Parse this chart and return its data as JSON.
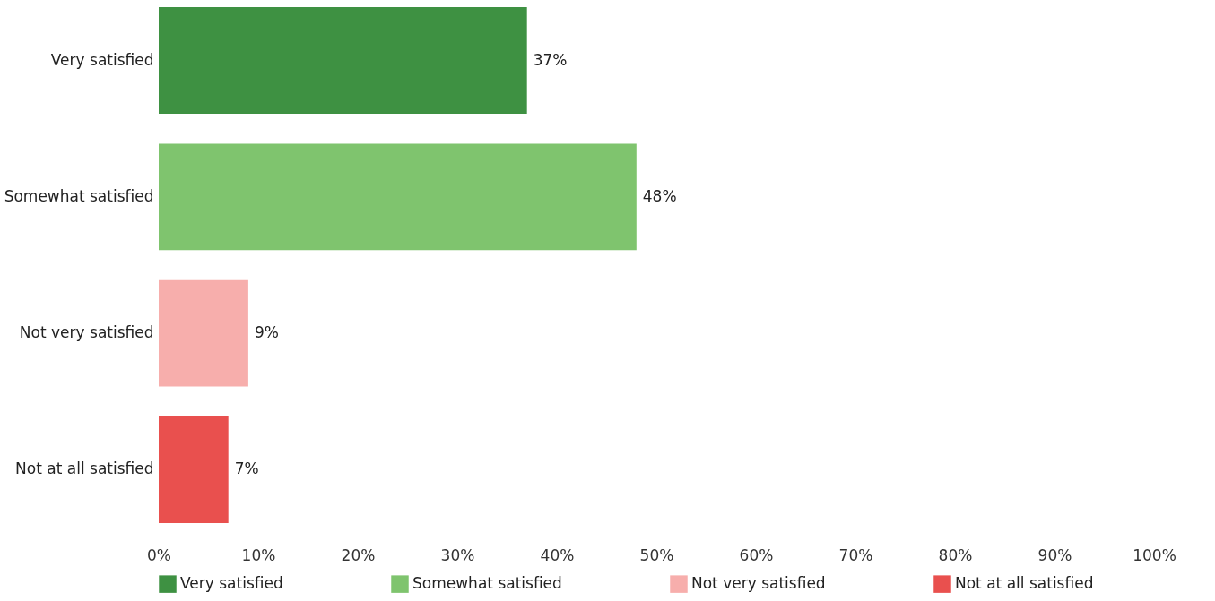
{
  "chart_data": {
    "type": "bar",
    "orientation": "horizontal",
    "stacked": true,
    "categories": [
      "Very satisfied",
      "Somewhat satisfied",
      "Not very satisfied",
      "Not at all satisfied"
    ],
    "series": [
      {
        "name": "Very satisfied",
        "color": "#3e9142",
        "values": [
          37,
          null,
          null,
          null
        ],
        "value_labels": [
          "37%",
          null,
          null,
          null
        ]
      },
      {
        "name": "Somewhat satisfied",
        "color": "#7fc46e",
        "values": [
          null,
          48,
          null,
          null
        ],
        "value_labels": [
          null,
          "48%",
          null,
          null
        ]
      },
      {
        "name": "Not very satisfied",
        "color": "#f7aeac",
        "values": [
          null,
          null,
          9,
          null
        ],
        "value_labels": [
          null,
          null,
          "9%",
          null
        ]
      },
      {
        "name": "Not at all satisfied",
        "color": "#e9504e",
        "values": [
          null,
          null,
          null,
          7
        ],
        "value_labels": [
          null,
          null,
          null,
          "7%"
        ]
      }
    ],
    "xlim": [
      0,
      100
    ],
    "xticks": [
      {
        "value": 0,
        "label": "0%"
      },
      {
        "value": 10,
        "label": "10%"
      },
      {
        "value": 20,
        "label": "20%"
      },
      {
        "value": 30,
        "label": "30%"
      },
      {
        "value": 40,
        "label": "40%"
      },
      {
        "value": 50,
        "label": "50%"
      },
      {
        "value": 60,
        "label": "60%"
      },
      {
        "value": 70,
        "label": "70%"
      },
      {
        "value": 80,
        "label": "80%"
      },
      {
        "value": 90,
        "label": "90%"
      },
      {
        "value": 100,
        "label": "100%"
      }
    ],
    "legend": "bottom"
  }
}
